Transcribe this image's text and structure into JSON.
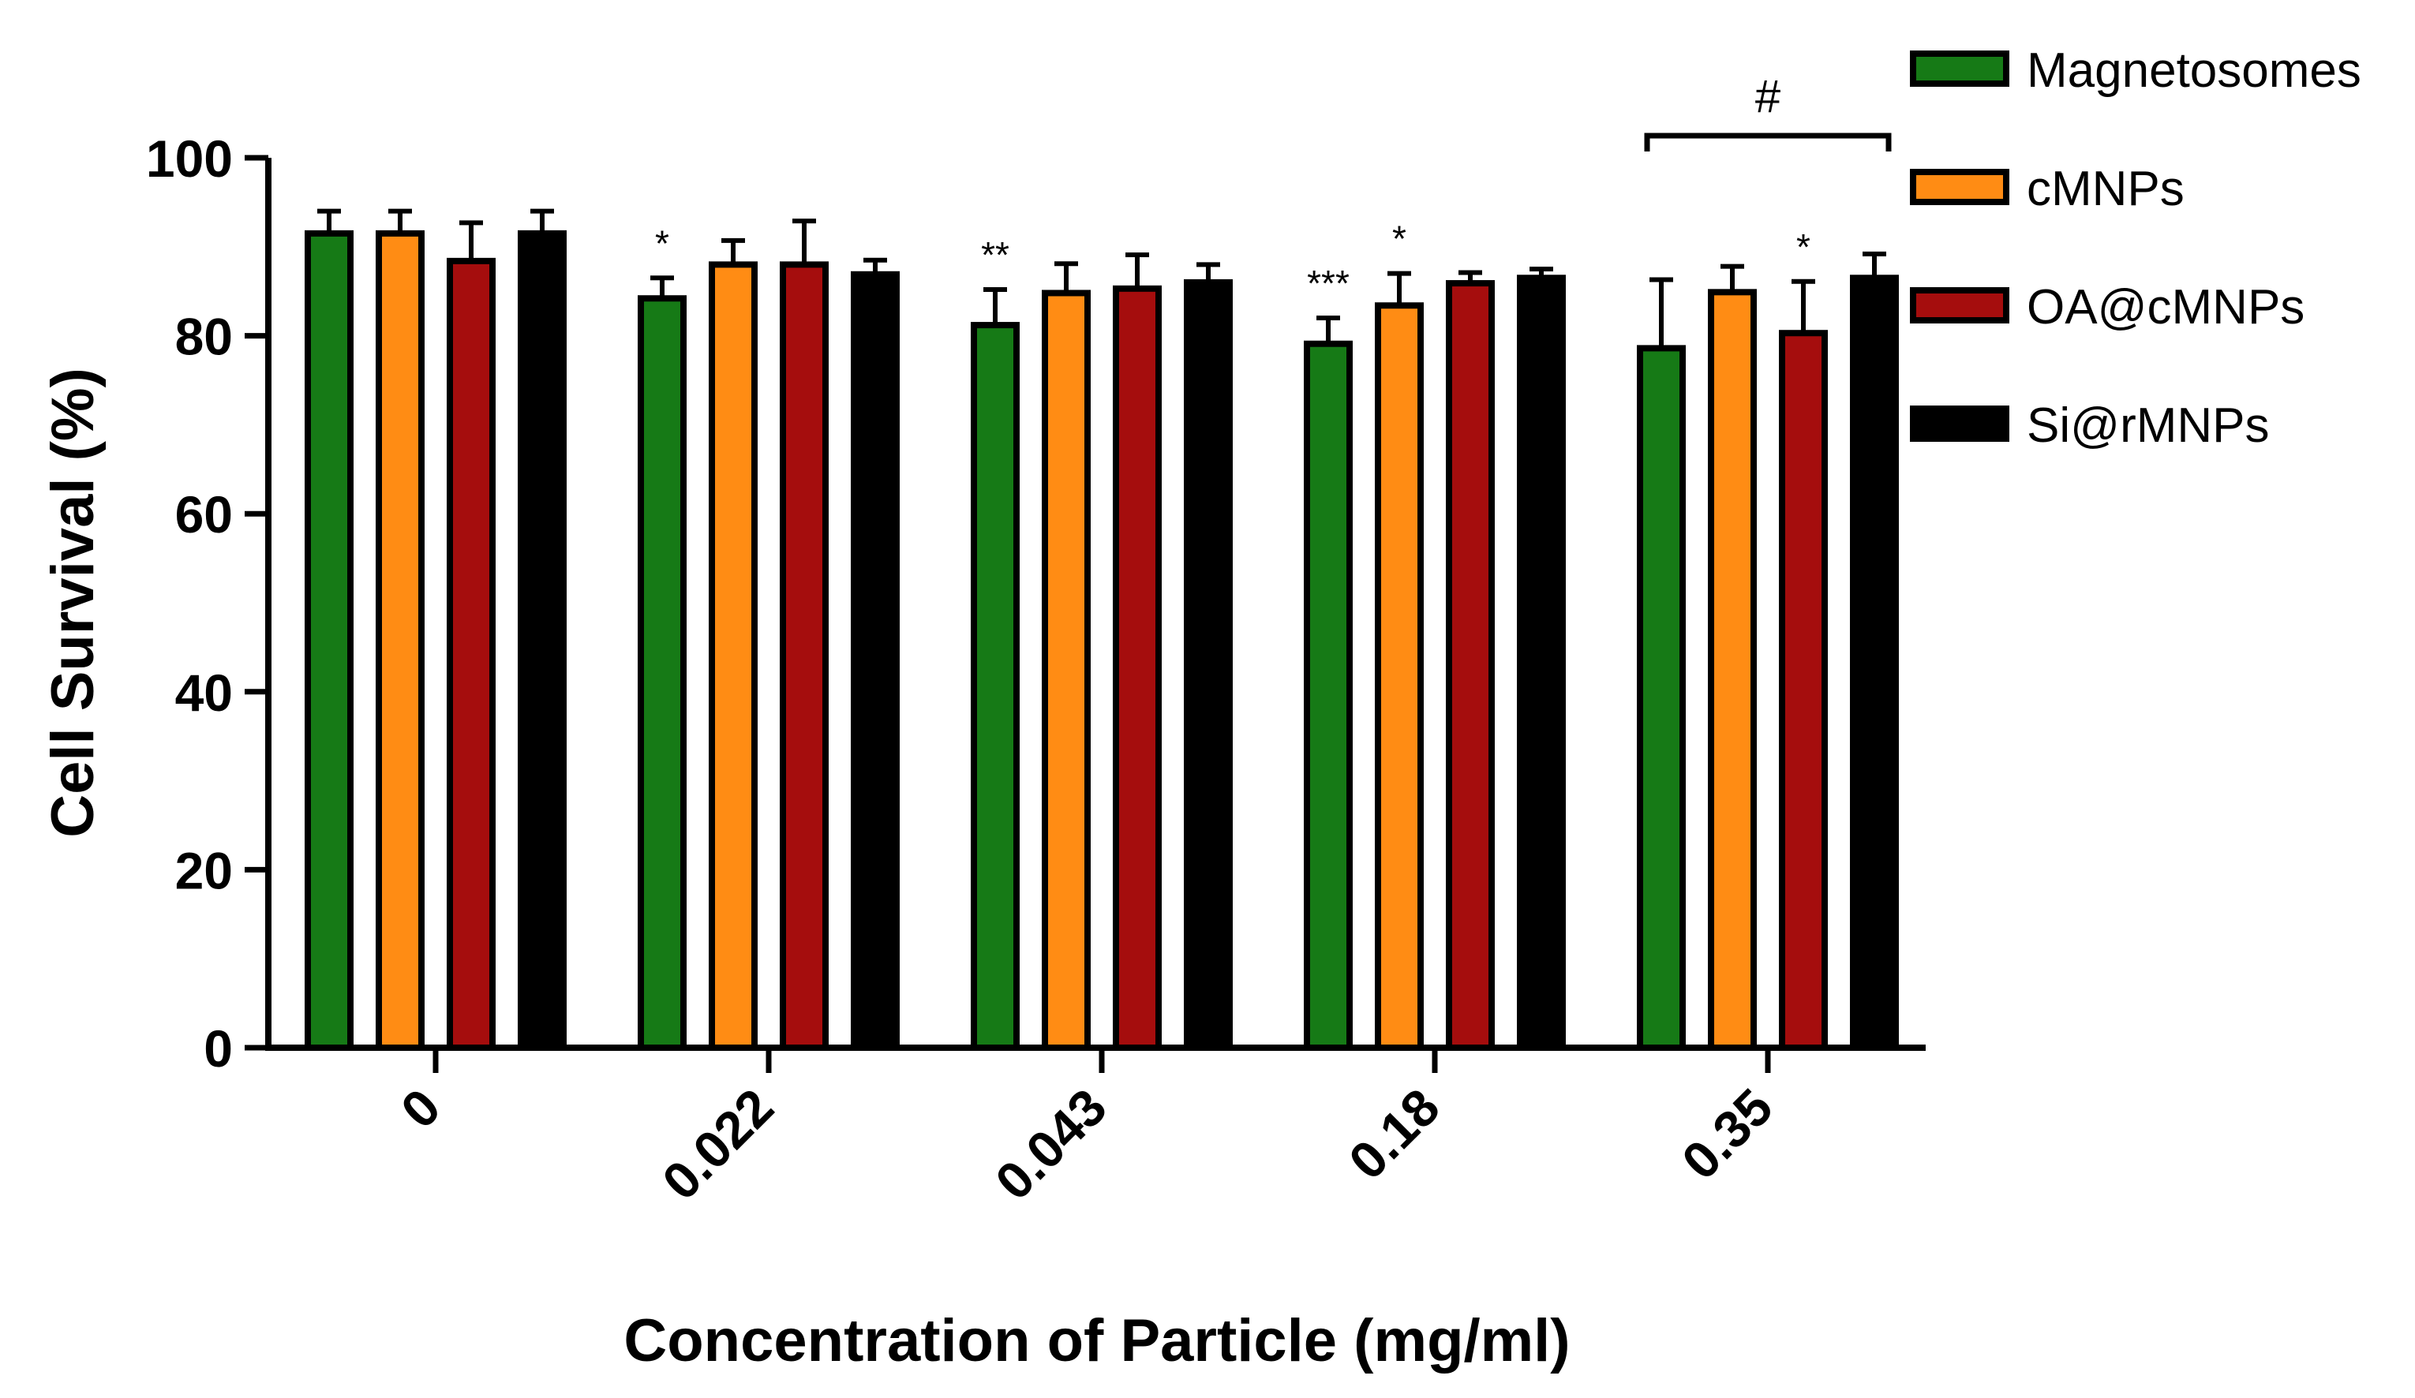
{
  "chart_data": {
    "type": "bar",
    "xlabel": "Concentration of Particle (mg/ml)",
    "ylabel": "Cell Survival (%)",
    "ylim": [
      0,
      100
    ],
    "yticks": [
      0,
      20,
      40,
      60,
      80,
      100
    ],
    "categories": [
      "0",
      "0.022",
      "0.043",
      "0.18",
      "0.35"
    ],
    "series": [
      {
        "name": "Magnetosomes",
        "color": "#167a16",
        "values": [
          91.5,
          84.2,
          81.2,
          79.1,
          78.6
        ],
        "errors": [
          2.5,
          2.3,
          4.0,
          2.9,
          7.7
        ]
      },
      {
        "name": "cMNPs",
        "color": "#ff8c14",
        "values": [
          91.5,
          88.0,
          84.8,
          83.4,
          84.9
        ],
        "errors": [
          2.5,
          2.7,
          3.3,
          3.6,
          2.9
        ]
      },
      {
        "name": "OA@cMNPs",
        "color": "#a50d0d",
        "values": [
          88.4,
          88.0,
          85.3,
          85.9,
          80.3
        ],
        "errors": [
          4.3,
          4.9,
          3.8,
          1.2,
          5.8
        ]
      },
      {
        "name": "Si@rMNPs",
        "color": "#000000",
        "values": [
          91.5,
          86.9,
          86.0,
          86.5,
          86.5
        ],
        "errors": [
          2.5,
          1.6,
          2.0,
          1.0,
          2.7
        ]
      }
    ],
    "significance": [
      {
        "category": 1,
        "series": 0,
        "label": "*"
      },
      {
        "category": 2,
        "series": 0,
        "label": "**"
      },
      {
        "category": 3,
        "series": 0,
        "label": "***"
      },
      {
        "category": 3,
        "series": 1,
        "label": "*"
      },
      {
        "category": 4,
        "series": 2,
        "label": "*"
      }
    ],
    "bracket": {
      "category": 4,
      "from_series": 0,
      "to_series": 3,
      "label": "#"
    },
    "legend_position": "top-right"
  }
}
